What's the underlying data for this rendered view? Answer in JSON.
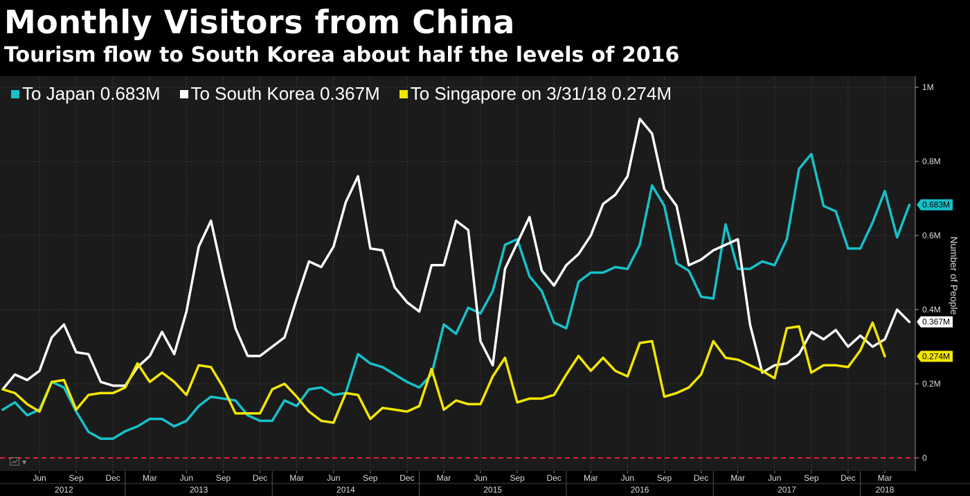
{
  "title": "Monthly Visitors from China",
  "subtitle": "Tourism flow to South Korea about half the levels of 2016",
  "colors": {
    "japan": "#17c1c9",
    "korea": "#ffffff",
    "singapore": "#f2e600",
    "zero_line": "#e0213a",
    "grid": "#555555",
    "plot_bg": "#1b1b1b"
  },
  "icons": {
    "chart_tool": "chart-options-icon",
    "chart_tool_caret": "caret-down-icon"
  },
  "chart_data": {
    "type": "line",
    "title": "Monthly Visitors from China",
    "subtitle": "Tourism flow to South Korea about half the levels of 2016",
    "ylabel": "Number of People",
    "ylim": [
      0,
      1000000
    ],
    "yticks": [
      {
        "v": 0,
        "label": "0"
      },
      {
        "v": 200000,
        "label": "0.2M"
      },
      {
        "v": 400000,
        "label": "0.4M"
      },
      {
        "v": 600000,
        "label": "0.6M"
      },
      {
        "v": 800000,
        "label": "0.8M"
      },
      {
        "v": 1000000,
        "label": "1M"
      }
    ],
    "x_start": "2012-03",
    "x_end": "2018-04",
    "xticks": [
      {
        "month": "2012-06",
        "label": "Jun"
      },
      {
        "month": "2012-09",
        "label": "Sep"
      },
      {
        "month": "2012-12",
        "label": "Dec"
      },
      {
        "month": "2013-03",
        "label": "Mar"
      },
      {
        "month": "2013-06",
        "label": "Jun"
      },
      {
        "month": "2013-09",
        "label": "Sep"
      },
      {
        "month": "2013-12",
        "label": "Dec"
      },
      {
        "month": "2014-03",
        "label": "Mar"
      },
      {
        "month": "2014-06",
        "label": "Jun"
      },
      {
        "month": "2014-09",
        "label": "Sep"
      },
      {
        "month": "2014-12",
        "label": "Dec"
      },
      {
        "month": "2015-03",
        "label": "Mar"
      },
      {
        "month": "2015-06",
        "label": "Jun"
      },
      {
        "month": "2015-09",
        "label": "Sep"
      },
      {
        "month": "2015-12",
        "label": "Dec"
      },
      {
        "month": "2016-03",
        "label": "Mar"
      },
      {
        "month": "2016-06",
        "label": "Jun"
      },
      {
        "month": "2016-09",
        "label": "Sep"
      },
      {
        "month": "2016-12",
        "label": "Dec"
      },
      {
        "month": "2017-03",
        "label": "Mar"
      },
      {
        "month": "2017-06",
        "label": "Jun"
      },
      {
        "month": "2017-09",
        "label": "Sep"
      },
      {
        "month": "2017-12",
        "label": "Dec"
      },
      {
        "month": "2018-03",
        "label": "Mar"
      }
    ],
    "year_labels": [
      "2012",
      "2013",
      "2014",
      "2015",
      "2016",
      "2017",
      "2018"
    ],
    "grid": true,
    "legend_position": "top-left",
    "series": [
      {
        "name": "To Japan",
        "legend_value": "0.683M",
        "end_label": "0.683M",
        "color": "#17c1c9",
        "start": "2012-03",
        "values": [
          130000,
          150000,
          115000,
          130000,
          205000,
          190000,
          125000,
          70000,
          52000,
          52000,
          72000,
          85000,
          105000,
          105000,
          85000,
          100000,
          140000,
          165000,
          160000,
          155000,
          115000,
          100000,
          100000,
          155000,
          140000,
          185000,
          190000,
          170000,
          175000,
          280000,
          255000,
          245000,
          225000,
          205000,
          190000,
          225000,
          360000,
          335000,
          405000,
          390000,
          450000,
          575000,
          590000,
          490000,
          450000,
          365000,
          350000,
          475000,
          500000,
          500000,
          515000,
          510000,
          575000,
          735000,
          680000,
          525000,
          505000,
          435000,
          430000,
          630000,
          510000,
          510000,
          530000,
          520000,
          590000,
          780000,
          820000,
          680000,
          665000,
          565000,
          565000,
          635000,
          720000,
          595000,
          683000
        ]
      },
      {
        "name": "To South Korea",
        "legend_value": "0.367M",
        "end_label": "0.367M",
        "color": "#ffffff",
        "start": "2012-03",
        "values": [
          185000,
          225000,
          210000,
          235000,
          325000,
          360000,
          285000,
          280000,
          205000,
          195000,
          195000,
          245000,
          275000,
          340000,
          280000,
          395000,
          570000,
          640000,
          490000,
          350000,
          275000,
          275000,
          300000,
          325000,
          430000,
          530000,
          515000,
          570000,
          690000,
          760000,
          565000,
          560000,
          460000,
          420000,
          395000,
          520000,
          520000,
          640000,
          615000,
          315000,
          250000,
          510000,
          580000,
          650000,
          505000,
          465000,
          520000,
          550000,
          600000,
          685000,
          710000,
          760000,
          915000,
          875000,
          725000,
          680000,
          520000,
          535000,
          560000,
          575000,
          590000,
          360000,
          230000,
          250000,
          255000,
          280000,
          340000,
          320000,
          345000,
          300000,
          330000,
          300000,
          320000,
          400000,
          367000
        ]
      },
      {
        "name": "To Singapore on 3/31/18",
        "legend_value": "0.274M",
        "end_label": "0.274M",
        "color": "#f2e600",
        "start": "2012-03",
        "values": [
          185000,
          175000,
          145000,
          125000,
          205000,
          210000,
          130000,
          170000,
          175000,
          175000,
          190000,
          255000,
          205000,
          230000,
          205000,
          170000,
          250000,
          245000,
          190000,
          120000,
          120000,
          120000,
          185000,
          200000,
          165000,
          125000,
          100000,
          95000,
          175000,
          170000,
          105000,
          135000,
          130000,
          125000,
          140000,
          240000,
          130000,
          155000,
          145000,
          145000,
          220000,
          270000,
          150000,
          160000,
          160000,
          170000,
          225000,
          275000,
          235000,
          270000,
          235000,
          220000,
          310000,
          315000,
          165000,
          175000,
          190000,
          225000,
          315000,
          270000,
          265000,
          250000,
          235000,
          215000,
          350000,
          355000,
          230000,
          250000,
          250000,
          245000,
          290000,
          365000,
          274000
        ]
      }
    ]
  }
}
